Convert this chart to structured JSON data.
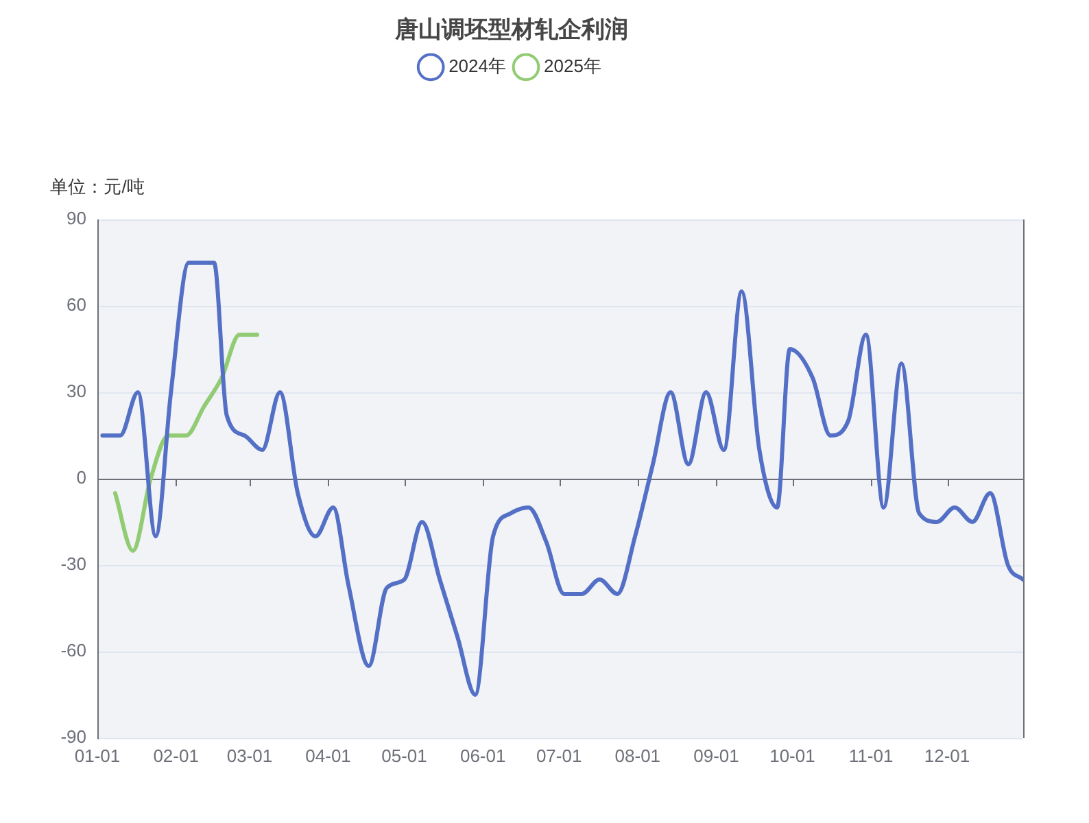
{
  "chart_data": {
    "type": "line",
    "title": "唐山调坯型材轧企利润",
    "ylabel": "单位：元/吨",
    "legend": "top",
    "grid": "y",
    "marker": "none",
    "line_style": "solid",
    "xlim": [
      "--01-01",
      "--12-31"
    ],
    "xticks": [
      {
        "value": "--01-01",
        "label": "01-01"
      },
      {
        "value": "--02-01",
        "label": "02-01"
      },
      {
        "value": "--03-01",
        "label": "03-01"
      },
      {
        "value": "--04-01",
        "label": "04-01"
      },
      {
        "value": "--05-01",
        "label": "05-01"
      },
      {
        "value": "--06-01",
        "label": "06-01"
      },
      {
        "value": "--07-01",
        "label": "07-01"
      },
      {
        "value": "--08-01",
        "label": "08-01"
      },
      {
        "value": "--09-01",
        "label": "09-01"
      },
      {
        "value": "--10-01",
        "label": "10-01"
      },
      {
        "value": "--11-01",
        "label": "11-01"
      },
      {
        "value": "--12-01",
        "label": "12-01"
      }
    ],
    "ylim": [
      -90,
      90
    ],
    "yticks": [
      -90,
      -60,
      -30,
      0,
      30,
      60,
      90
    ],
    "series": [
      {
        "name": "2024年",
        "color": "#5470c6",
        "x": [
          "--01-03",
          "--01-10",
          "--01-17",
          "--01-24",
          "--01-30",
          "--02-06",
          "--02-16",
          "--02-21",
          "--02-28",
          "--03-06",
          "--03-13",
          "--03-20",
          "--03-27",
          "--04-03",
          "--04-09",
          "--04-17",
          "--04-24",
          "--05-01",
          "--05-08",
          "--05-15",
          "--05-22",
          "--05-29",
          "--06-05",
          "--06-12",
          "--06-19",
          "--06-26",
          "--07-03",
          "--07-10",
          "--07-17",
          "--07-24",
          "--07-31",
          "--08-07",
          "--08-14",
          "--08-21",
          "--08-28",
          "--09-04",
          "--09-11",
          "--09-18",
          "--09-25",
          "--09-30",
          "--10-09",
          "--10-16",
          "--10-23",
          "--10-30",
          "--11-06",
          "--11-13",
          "--11-20",
          "--11-27",
          "--12-04",
          "--12-11",
          "--12-18",
          "--12-25",
          "--12-31"
        ],
        "values": [
          15,
          15,
          30,
          -20,
          30,
          75,
          75,
          22,
          15,
          10,
          30,
          -5,
          -20,
          -10,
          -37,
          -65,
          -38,
          -35,
          -15,
          -35,
          -55,
          -75,
          -20,
          -12,
          -10,
          -22,
          -40,
          -40,
          -35,
          -40,
          -20,
          5,
          30,
          5,
          30,
          10,
          65,
          10,
          -10,
          45,
          35,
          15,
          20,
          50,
          -10,
          40,
          -12,
          -15,
          -10,
          -15,
          -5,
          -30,
          -35
        ]
      },
      {
        "name": "2025年",
        "color": "#91cc75",
        "x": [
          "--01-08",
          "--01-15",
          "--01-22",
          "--01-29",
          "--02-05",
          "--02-12",
          "--02-19",
          "--02-26",
          "--03-04"
        ],
        "values": [
          -5,
          -25,
          0,
          15,
          15,
          25,
          35,
          50,
          50
        ]
      }
    ]
  }
}
